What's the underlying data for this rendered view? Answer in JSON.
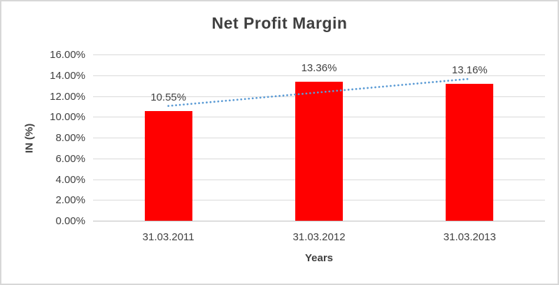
{
  "chart_data": {
    "type": "bar",
    "title": "Net Profit Margin",
    "xlabel": "Years",
    "ylabel": "IN (%)",
    "categories": [
      "31.03.2011",
      "31.03.2012",
      "31.03.2013"
    ],
    "values": [
      10.55,
      13.36,
      13.16
    ],
    "data_labels": [
      "10.55%",
      "13.36%",
      "13.16%"
    ],
    "y_ticks": [
      "0.00%",
      "2.00%",
      "4.00%",
      "6.00%",
      "8.00%",
      "10.00%",
      "12.00%",
      "14.00%",
      "16.00%"
    ],
    "ylim": [
      0,
      16
    ],
    "grid": true,
    "legend": false,
    "bar_color": "#ff0000",
    "text_color": "#404040",
    "gridline_color": "#d9d9d9",
    "axis_line_color": "#bfbfbf",
    "trendline": {
      "style": "dotted",
      "color": "#5b9bd5",
      "start_value": 11.05,
      "end_value": 13.66
    }
  }
}
